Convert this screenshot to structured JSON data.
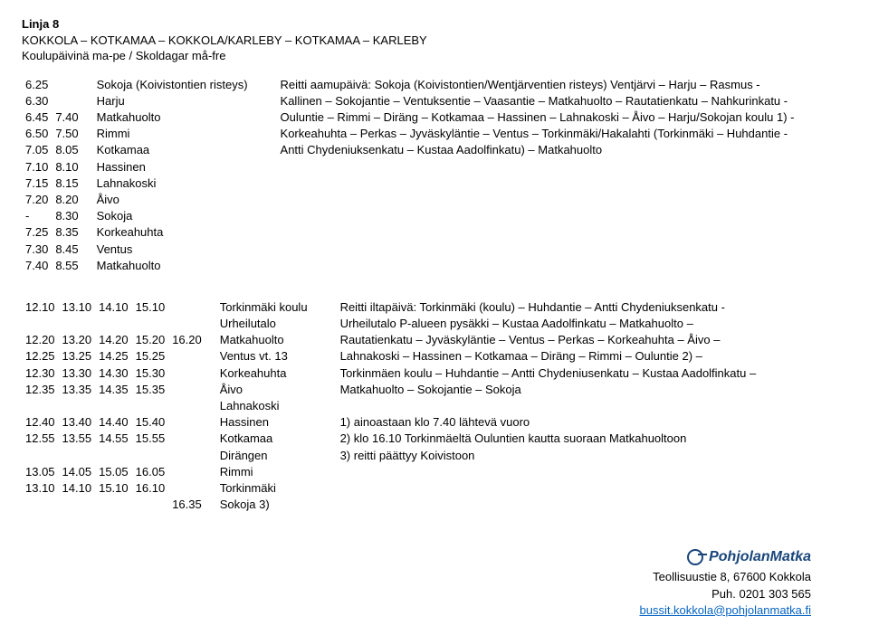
{
  "header": {
    "line": "Linja 8",
    "route": "KOKKOLA – KOTKAMAA – KOKKOLA/KARLEBY – KOTKAMAA – KARLEBY",
    "days": "Koulupäivinä ma-pe / Skoldagar må-fre"
  },
  "morning": {
    "rows": [
      {
        "c": [
          "6.25",
          "",
          "Sokoja (Koivistontien risteys)"
        ]
      },
      {
        "c": [
          "6.30",
          "",
          "Harju"
        ]
      },
      {
        "c": [
          "6.45",
          "7.40",
          "Matkahuolto"
        ]
      },
      {
        "c": [
          "6.50",
          "7.50",
          "Rimmi"
        ]
      },
      {
        "c": [
          "7.05",
          "8.05",
          "Kotkamaa"
        ]
      },
      {
        "c": [
          "7.10",
          "8.10",
          "Hassinen"
        ]
      },
      {
        "c": [
          "7.15",
          "8.15",
          "Lahnakoski"
        ]
      },
      {
        "c": [
          "7.20",
          "8.20",
          "Åivo"
        ]
      },
      {
        "c": [
          "-",
          "8.30",
          "Sokoja"
        ]
      },
      {
        "c": [
          "7.25",
          "8.35",
          "Korkeahuhta"
        ]
      },
      {
        "c": [
          "7.30",
          "8.45",
          "Ventus"
        ]
      },
      {
        "c": [
          "7.40",
          "8.55",
          "Matkahuolto"
        ]
      }
    ],
    "desc": [
      "Reitti aamupäivä: Sokoja (Koivistontien/Wentjärventien risteys) Ventjärvi – Harju – Rasmus -",
      "Kallinen – Sokojantie – Ventuksentie – Vaasantie – Matkahuolto – Rautatienkatu – Nahkurinkatu -",
      "Ouluntie – Rimmi – Diräng – Kotkamaa – Hassinen – Lahnakoski – Åivo – Harju/Sokojan koulu 1) -",
      "Korkeahuhta – Perkas – Jyväskyläntie – Ventus – Torkinmäki/Hakalahti (Torkinmäki – Huhdantie -",
      "Antti Chydeniuksenkatu – Kustaa Aadolfinkatu) – Matkahuolto"
    ]
  },
  "afternoon": {
    "rows": [
      {
        "c": [
          "12.10",
          "13.10",
          "14.10",
          "15.10",
          "",
          "Torkinmäki koulu"
        ]
      },
      {
        "c": [
          "",
          "",
          "",
          "",
          "",
          "Urheilutalo"
        ]
      },
      {
        "c": [
          "12.20",
          "13.20",
          "14.20",
          "15.20",
          "16.20",
          "Matkahuolto"
        ]
      },
      {
        "c": [
          "12.25",
          "13.25",
          "14.25",
          "15.25",
          "",
          "Ventus vt. 13"
        ]
      },
      {
        "c": [
          "12.30",
          "13.30",
          "14.30",
          "15.30",
          "",
          "Korkeahuhta"
        ]
      },
      {
        "c": [
          "12.35",
          "13.35",
          "14.35",
          "15.35",
          "",
          "Åivo"
        ]
      },
      {
        "c": [
          "",
          "",
          "",
          "",
          "",
          "Lahnakoski"
        ]
      },
      {
        "c": [
          "12.40",
          "13.40",
          "14.40",
          "15.40",
          "",
          "Hassinen"
        ]
      },
      {
        "c": [
          "12.55",
          "13.55",
          "14.55",
          "15.55",
          "",
          "Kotkamaa"
        ]
      },
      {
        "c": [
          "",
          "",
          "",
          "",
          "",
          "Dirängen"
        ]
      },
      {
        "c": [
          "13.05",
          "14.05",
          "15.05",
          "16.05",
          "",
          "Rimmi"
        ]
      },
      {
        "c": [
          "13.10",
          "14.10",
          "15.10",
          "16.10",
          "",
          "Torkinmäki"
        ]
      },
      {
        "c": [
          "",
          "",
          "",
          "",
          "16.35",
          "Sokoja 3)"
        ]
      }
    ],
    "desc": [
      "Reitti iltapäivä: Torkinmäki (koulu) – Huhdantie – Antti Chydeniuksenkatu -",
      "Urheilutalo P-alueen pysäkki – Kustaa Aadolfinkatu – Matkahuolto –",
      "Rautatienkatu – Jyväskyläntie – Ventus – Perkas – Korkeahuhta – Åivo –",
      "Lahnakoski – Hassinen – Kotkamaa – Diräng – Rimmi – Ouluntie 2) –",
      "Torkinmäen koulu – Huhdantie – Antti Chydeniusenkatu – Kustaa Aadolfinkatu –",
      "Matkahuolto – Sokojantie – Sokoja",
      "",
      "1) ainoastaan klo 7.40 lähtevä vuoro",
      "2) klo 16.10 Torkinmäeltä Ouluntien kautta suoraan Matkahuoltoon",
      "3) reitti päättyy Koivistoon"
    ]
  },
  "footer": {
    "brand": "PohjolanMatka",
    "addr": "Teollisuustie 8, 67600 Kokkola",
    "tel": "Puh. 0201 303 565",
    "mail": "bussit.kokkola@pohjolanmatka.fi"
  }
}
